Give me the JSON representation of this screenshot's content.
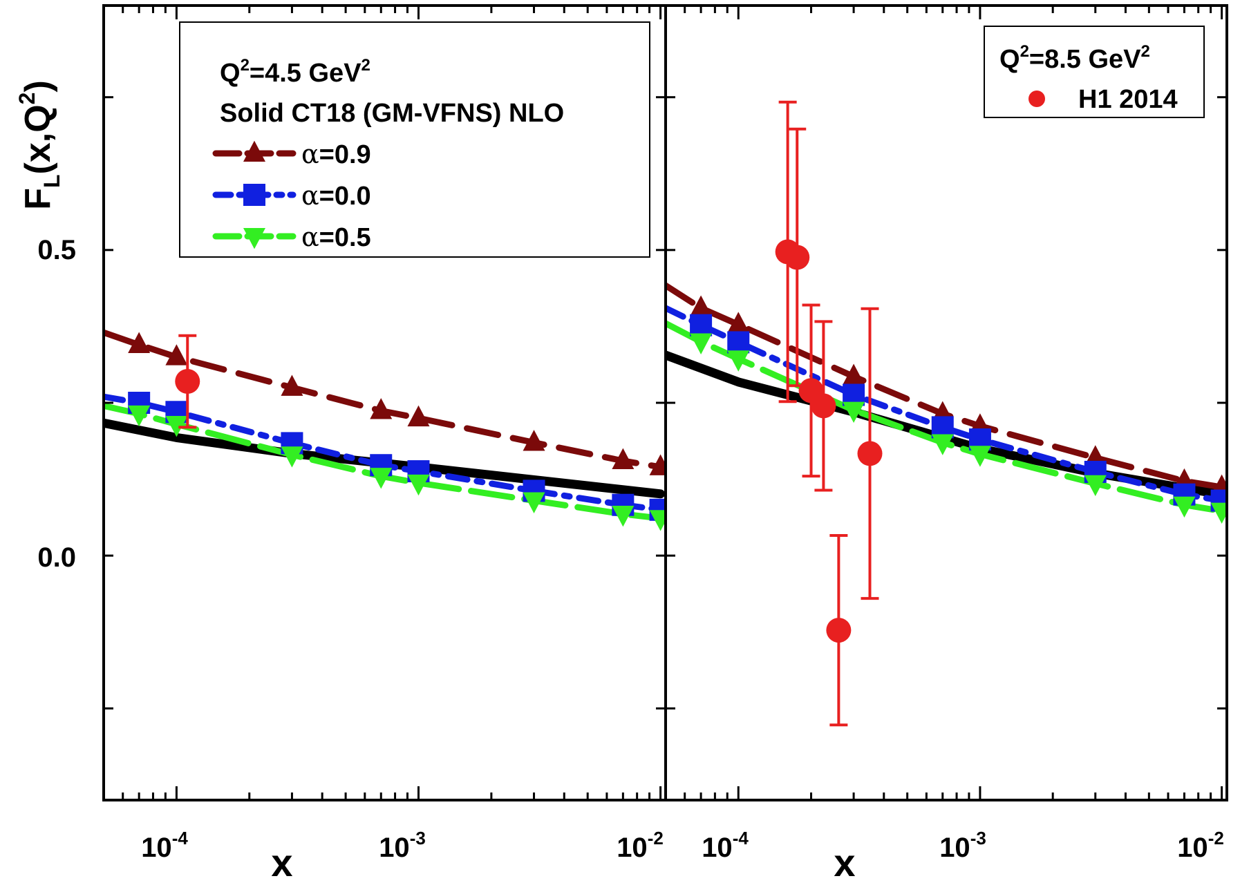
{
  "chart_data": {
    "type": "line",
    "y_axis": {
      "label_main": "F",
      "label_sub": "L",
      "label_rest": "(x,Q",
      "label_sup": "2",
      "label_end": ")",
      "range": [
        -0.4,
        0.9
      ],
      "tick_labels": [
        "0.5",
        "0.0"
      ],
      "tick_values": [
        0.5,
        0.0
      ]
    },
    "x_axis": {
      "label": "x",
      "scale": "log",
      "range": [
        5e-05,
        0.0105
      ],
      "tick_labels": [
        {
          "base": "10",
          "exp": "-4",
          "value": 0.0001
        },
        {
          "base": "10",
          "exp": "-3",
          "value": 0.001
        },
        {
          "base": "10",
          "exp": "-2",
          "value": 0.01
        }
      ]
    },
    "panels": [
      {
        "legend": {
          "q2_prefix": "Q",
          "q2_sup": "2",
          "q2_value": "=4.5 GeV",
          "q2_unit_sup": "2",
          "solid_label": "Solid CT18 (GM-VFNS) NLO",
          "entries": [
            {
              "symbol": "α",
              "text": "=0.9",
              "color": "#7b0a0a",
              "marker": "triangle-up"
            },
            {
              "symbol": "α",
              "text": "=0.0",
              "color": "#1020e0",
              "marker": "square"
            },
            {
              "symbol": "α",
              "text": "=0.5",
              "color": "#33ee22",
              "marker": "triangle-down"
            }
          ]
        },
        "series": [
          {
            "name": "CT18 (GM-VFNS) NLO",
            "color": "#000000",
            "style": "solid",
            "x": [
              5e-05,
              0.0001,
              0.0003,
              0.001,
              0.003,
              0.01
            ],
            "y": [
              0.217,
              0.193,
              0.167,
              0.145,
              0.124,
              0.101
            ]
          },
          {
            "name": "α=0.9",
            "color": "#7b0a0a",
            "style": "dash",
            "marker": "triangle-up",
            "x": [
              5e-05,
              7e-05,
              0.0001,
              0.0003,
              0.0007,
              0.001,
              0.003,
              0.007,
              0.01
            ],
            "y": [
              0.365,
              0.345,
              0.325,
              0.275,
              0.237,
              0.225,
              0.185,
              0.155,
              0.145
            ],
            "marker_y": [
              0.345,
              0.325,
              0.275,
              0.237,
              0.225,
              0.185,
              0.155,
              0.145
            ]
          },
          {
            "name": "α=0.0",
            "color": "#1020e0",
            "style": "dash-dot",
            "marker": "square",
            "x": [
              5e-05,
              7e-05,
              0.0001,
              0.0003,
              0.0007,
              0.001,
              0.003,
              0.007,
              0.01
            ],
            "y": [
              0.26,
              0.25,
              0.235,
              0.184,
              0.148,
              0.138,
              0.106,
              0.083,
              0.075
            ],
            "marker_y": [
              0.25,
              0.235,
              0.184,
              0.148,
              0.138,
              0.106,
              0.083,
              0.075
            ]
          },
          {
            "name": "α=0.5",
            "color": "#33ee22",
            "style": "long-dash",
            "marker": "triangle-down",
            "x": [
              5e-05,
              7e-05,
              0.0001,
              0.0003,
              0.0007,
              0.001,
              0.003,
              0.007,
              0.01
            ],
            "y": [
              0.245,
              0.232,
              0.215,
              0.165,
              0.13,
              0.119,
              0.09,
              0.068,
              0.061
            ],
            "marker_y": [
              0.232,
              0.215,
              0.165,
              0.13,
              0.119,
              0.09,
              0.068,
              0.061
            ]
          }
        ],
        "data_points": [
          {
            "x": 0.000111,
            "y": 0.285,
            "err": 0.075
          }
        ]
      },
      {
        "legend": {
          "q2_prefix": "Q",
          "q2_sup": "2",
          "q2_value": "=8.5 GeV",
          "q2_unit_sup": "2",
          "data_label": "H1 2014",
          "data_color": "#e82020"
        },
        "series": [
          {
            "name": "CT18 (GM-VFNS) NLO",
            "color": "#000000",
            "style": "solid",
            "x": [
              5e-05,
              0.0001,
              0.0003,
              0.001,
              0.003,
              0.01
            ],
            "y": [
              0.328,
              0.284,
              0.235,
              0.175,
              0.135,
              0.1
            ]
          },
          {
            "name": "α=0.9",
            "color": "#7b0a0a",
            "style": "dash",
            "marker": "triangle-up",
            "x": [
              5e-05,
              7e-05,
              0.0001,
              0.0003,
              0.0007,
              0.001,
              0.003,
              0.007,
              0.01
            ],
            "y": [
              0.442,
              0.405,
              0.378,
              0.293,
              0.232,
              0.212,
              0.16,
              0.122,
              0.112
            ],
            "marker_y": [
              0.405,
              0.378,
              0.293,
              0.232,
              0.212,
              0.16,
              0.122,
              0.112
            ]
          },
          {
            "name": "α=0.0",
            "color": "#1020e0",
            "style": "dash-dot",
            "marker": "square",
            "x": [
              5e-05,
              7e-05,
              0.0001,
              0.0003,
              0.0007,
              0.001,
              0.003,
              0.007,
              0.01
            ],
            "y": [
              0.405,
              0.377,
              0.349,
              0.263,
              0.21,
              0.19,
              0.137,
              0.1,
              0.09
            ],
            "marker_y": [
              0.377,
              0.349,
              0.263,
              0.21,
              0.19,
              0.137,
              0.1,
              0.09
            ]
          },
          {
            "name": "α=0.5",
            "color": "#33ee22",
            "style": "long-dash",
            "marker": "triangle-down",
            "x": [
              5e-05,
              7e-05,
              0.0001,
              0.0003,
              0.0007,
              0.001,
              0.003,
              0.007,
              0.01
            ],
            "y": [
              0.38,
              0.35,
              0.322,
              0.238,
              0.185,
              0.166,
              0.118,
              0.083,
              0.073
            ],
            "marker_y": [
              0.35,
              0.322,
              0.238,
              0.185,
              0.166,
              0.118,
              0.083,
              0.073
            ]
          }
        ],
        "data_points": [
          {
            "x": 0.00016,
            "y": 0.497,
            "err": 0.245
          },
          {
            "x": 0.000175,
            "y": 0.488,
            "err": 0.21
          },
          {
            "x": 0.0002,
            "y": 0.27,
            "err": 0.14
          },
          {
            "x": 0.000225,
            "y": 0.245,
            "err": 0.138
          },
          {
            "x": 0.00026,
            "y": -0.122,
            "err": 0.155
          },
          {
            "x": 0.00035,
            "y": 0.167,
            "err": 0.237
          }
        ]
      }
    ]
  }
}
